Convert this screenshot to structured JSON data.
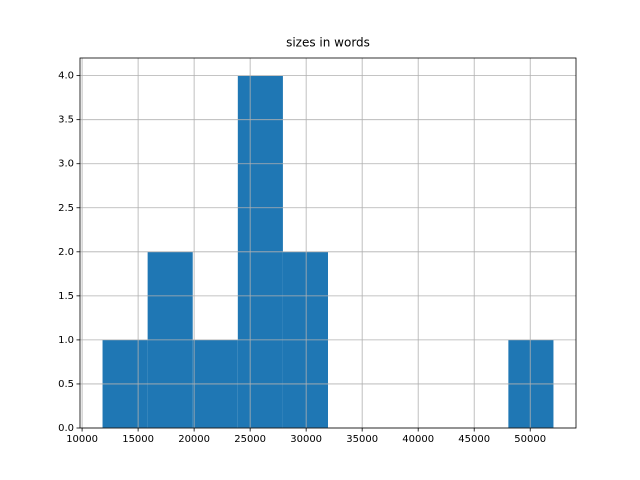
{
  "chart_data": {
    "type": "histogram",
    "title": "sizes in words",
    "bins": [
      11825,
      15850,
      19875,
      23900,
      27925,
      31950,
      35975,
      40000,
      44025,
      48050,
      52075
    ],
    "values": [
      1,
      2,
      1,
      4,
      2,
      0,
      0,
      0,
      0,
      1
    ],
    "color": "#1f77b4",
    "xlim": [
      9813,
      54087
    ],
    "xticks": [
      10000,
      15000,
      20000,
      25000,
      30000,
      35000,
      40000,
      45000,
      50000
    ],
    "ylim": [
      0,
      4.2
    ],
    "yticks": [
      {
        "value": 0,
        "label": "0.0"
      },
      {
        "value": 0.5,
        "label": "0.5"
      },
      {
        "value": 1,
        "label": "1.0"
      },
      {
        "value": 1.5,
        "label": "1.5"
      },
      {
        "value": 2,
        "label": "2.0"
      },
      {
        "value": 2.5,
        "label": "2.5"
      },
      {
        "value": 3,
        "label": "3.0"
      },
      {
        "value": 3.5,
        "label": "3.5"
      },
      {
        "value": 4,
        "label": "4.0"
      }
    ],
    "grid": true
  }
}
